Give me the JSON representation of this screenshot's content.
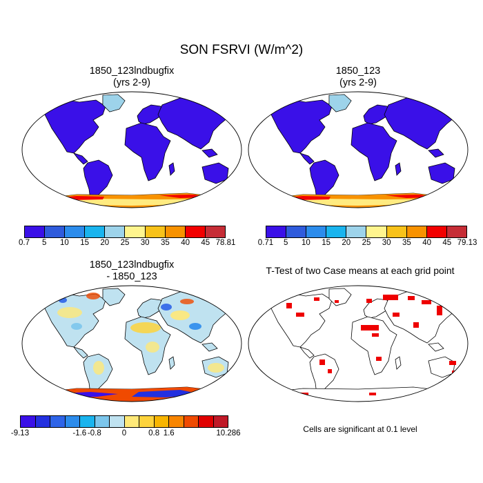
{
  "figure": {
    "title": "SON FSRVI (W/m^2)"
  },
  "panels": [
    {
      "id": "p1",
      "title_line1": "1850_123lndbugfix",
      "title_line2": "(yrs 2-9)"
    },
    {
      "id": "p2",
      "title_line1": "1850_123",
      "title_line2": "(yrs 2-9)"
    },
    {
      "id": "p3",
      "title_line1": "1850_123lndbugfix",
      "title_line2": "- 1850_123"
    },
    {
      "id": "p4",
      "title_line1": "T-Test of two Case means at each grid point",
      "title_line2": ""
    }
  ],
  "colorbars": {
    "c1": {
      "labels": [
        "0.7",
        "5",
        "10",
        "15",
        "20",
        "25",
        "30",
        "35",
        "40",
        "45",
        "78.81"
      ],
      "colors": [
        "#3a10e8",
        "#2f5bdc",
        "#2c8cec",
        "#1ab4ee",
        "#9dd3ea",
        "#fff58e",
        "#f8c21a",
        "#f89200",
        "#f20000",
        "#c62d36"
      ]
    },
    "c2": {
      "labels": [
        "0.71",
        "5",
        "10",
        "15",
        "20",
        "25",
        "30",
        "35",
        "40",
        "45",
        "79.13"
      ],
      "colors": [
        "#3a10e8",
        "#2f5bdc",
        "#2c8cec",
        "#1ab4ee",
        "#9dd3ea",
        "#fff58e",
        "#f8c21a",
        "#f89200",
        "#f20000",
        "#c62d36"
      ]
    },
    "c3": {
      "labels": [
        "-9.13",
        "-1.6",
        "-0.8",
        "0",
        "0.8",
        "1.6",
        "10.286"
      ],
      "colors": [
        "#3a10e8",
        "#2330e0",
        "#2e64e8",
        "#2c8cec",
        "#1ab4ee",
        "#7cc6ec",
        "#bfe2f0",
        "#ffe978",
        "#fdd33c",
        "#f8b500",
        "#f88500",
        "#f04a00",
        "#e00000",
        "#c01a28"
      ]
    }
  },
  "significance_note": "Cells are significant at 0.1 level",
  "map_colors": {
    "land_low": "#3a10e8",
    "antarctica_high": "#f20000",
    "diff_neutral": "#bfe2f0",
    "signif": "#ee0000"
  }
}
